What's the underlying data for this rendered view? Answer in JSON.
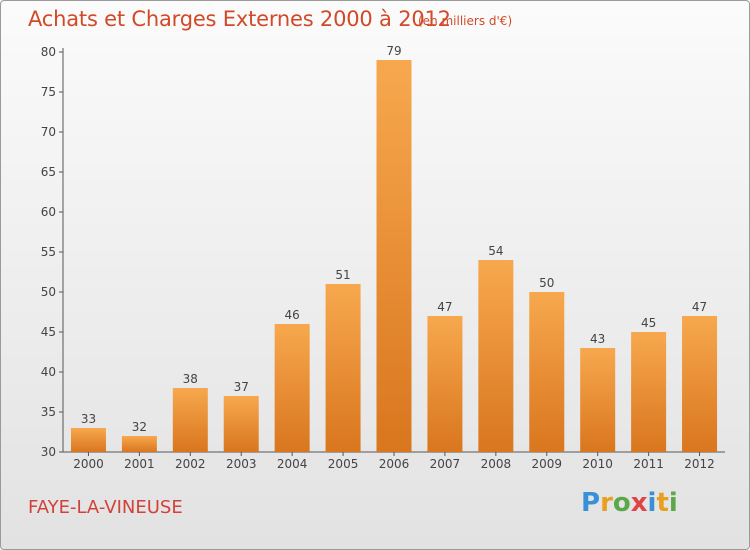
{
  "title": "Achats et Charges Externes 2000 à 2012",
  "subtitle": "(en milliers d'€)",
  "place": "FAYE-LA-VINEUSE",
  "brand": {
    "letters": [
      "P",
      "r",
      "o",
      "x",
      "i",
      "t",
      "i"
    ],
    "colors": [
      "#3a8fd6",
      "#e8a020",
      "#5aa84a",
      "#e04545",
      "#3a8fd6",
      "#e8a020",
      "#5aa84a"
    ]
  },
  "colors": {
    "bar_light": "#f7a84e",
    "bar_dark": "#d9761e",
    "title": "#d14a28",
    "axis": "#555555"
  },
  "chart_data": {
    "type": "bar",
    "categories": [
      "2000",
      "2001",
      "2002",
      "2003",
      "2004",
      "2005",
      "2006",
      "2007",
      "2008",
      "2009",
      "2010",
      "2011",
      "2012"
    ],
    "values": [
      33,
      32,
      38,
      37,
      46,
      51,
      79,
      47,
      54,
      50,
      43,
      45,
      47
    ],
    "ylim": [
      30,
      80
    ],
    "yticks": [
      30,
      35,
      40,
      45,
      50,
      55,
      60,
      65,
      70,
      75,
      80
    ],
    "grid": false,
    "data_labels": true,
    "xlabel": "",
    "ylabel": ""
  }
}
